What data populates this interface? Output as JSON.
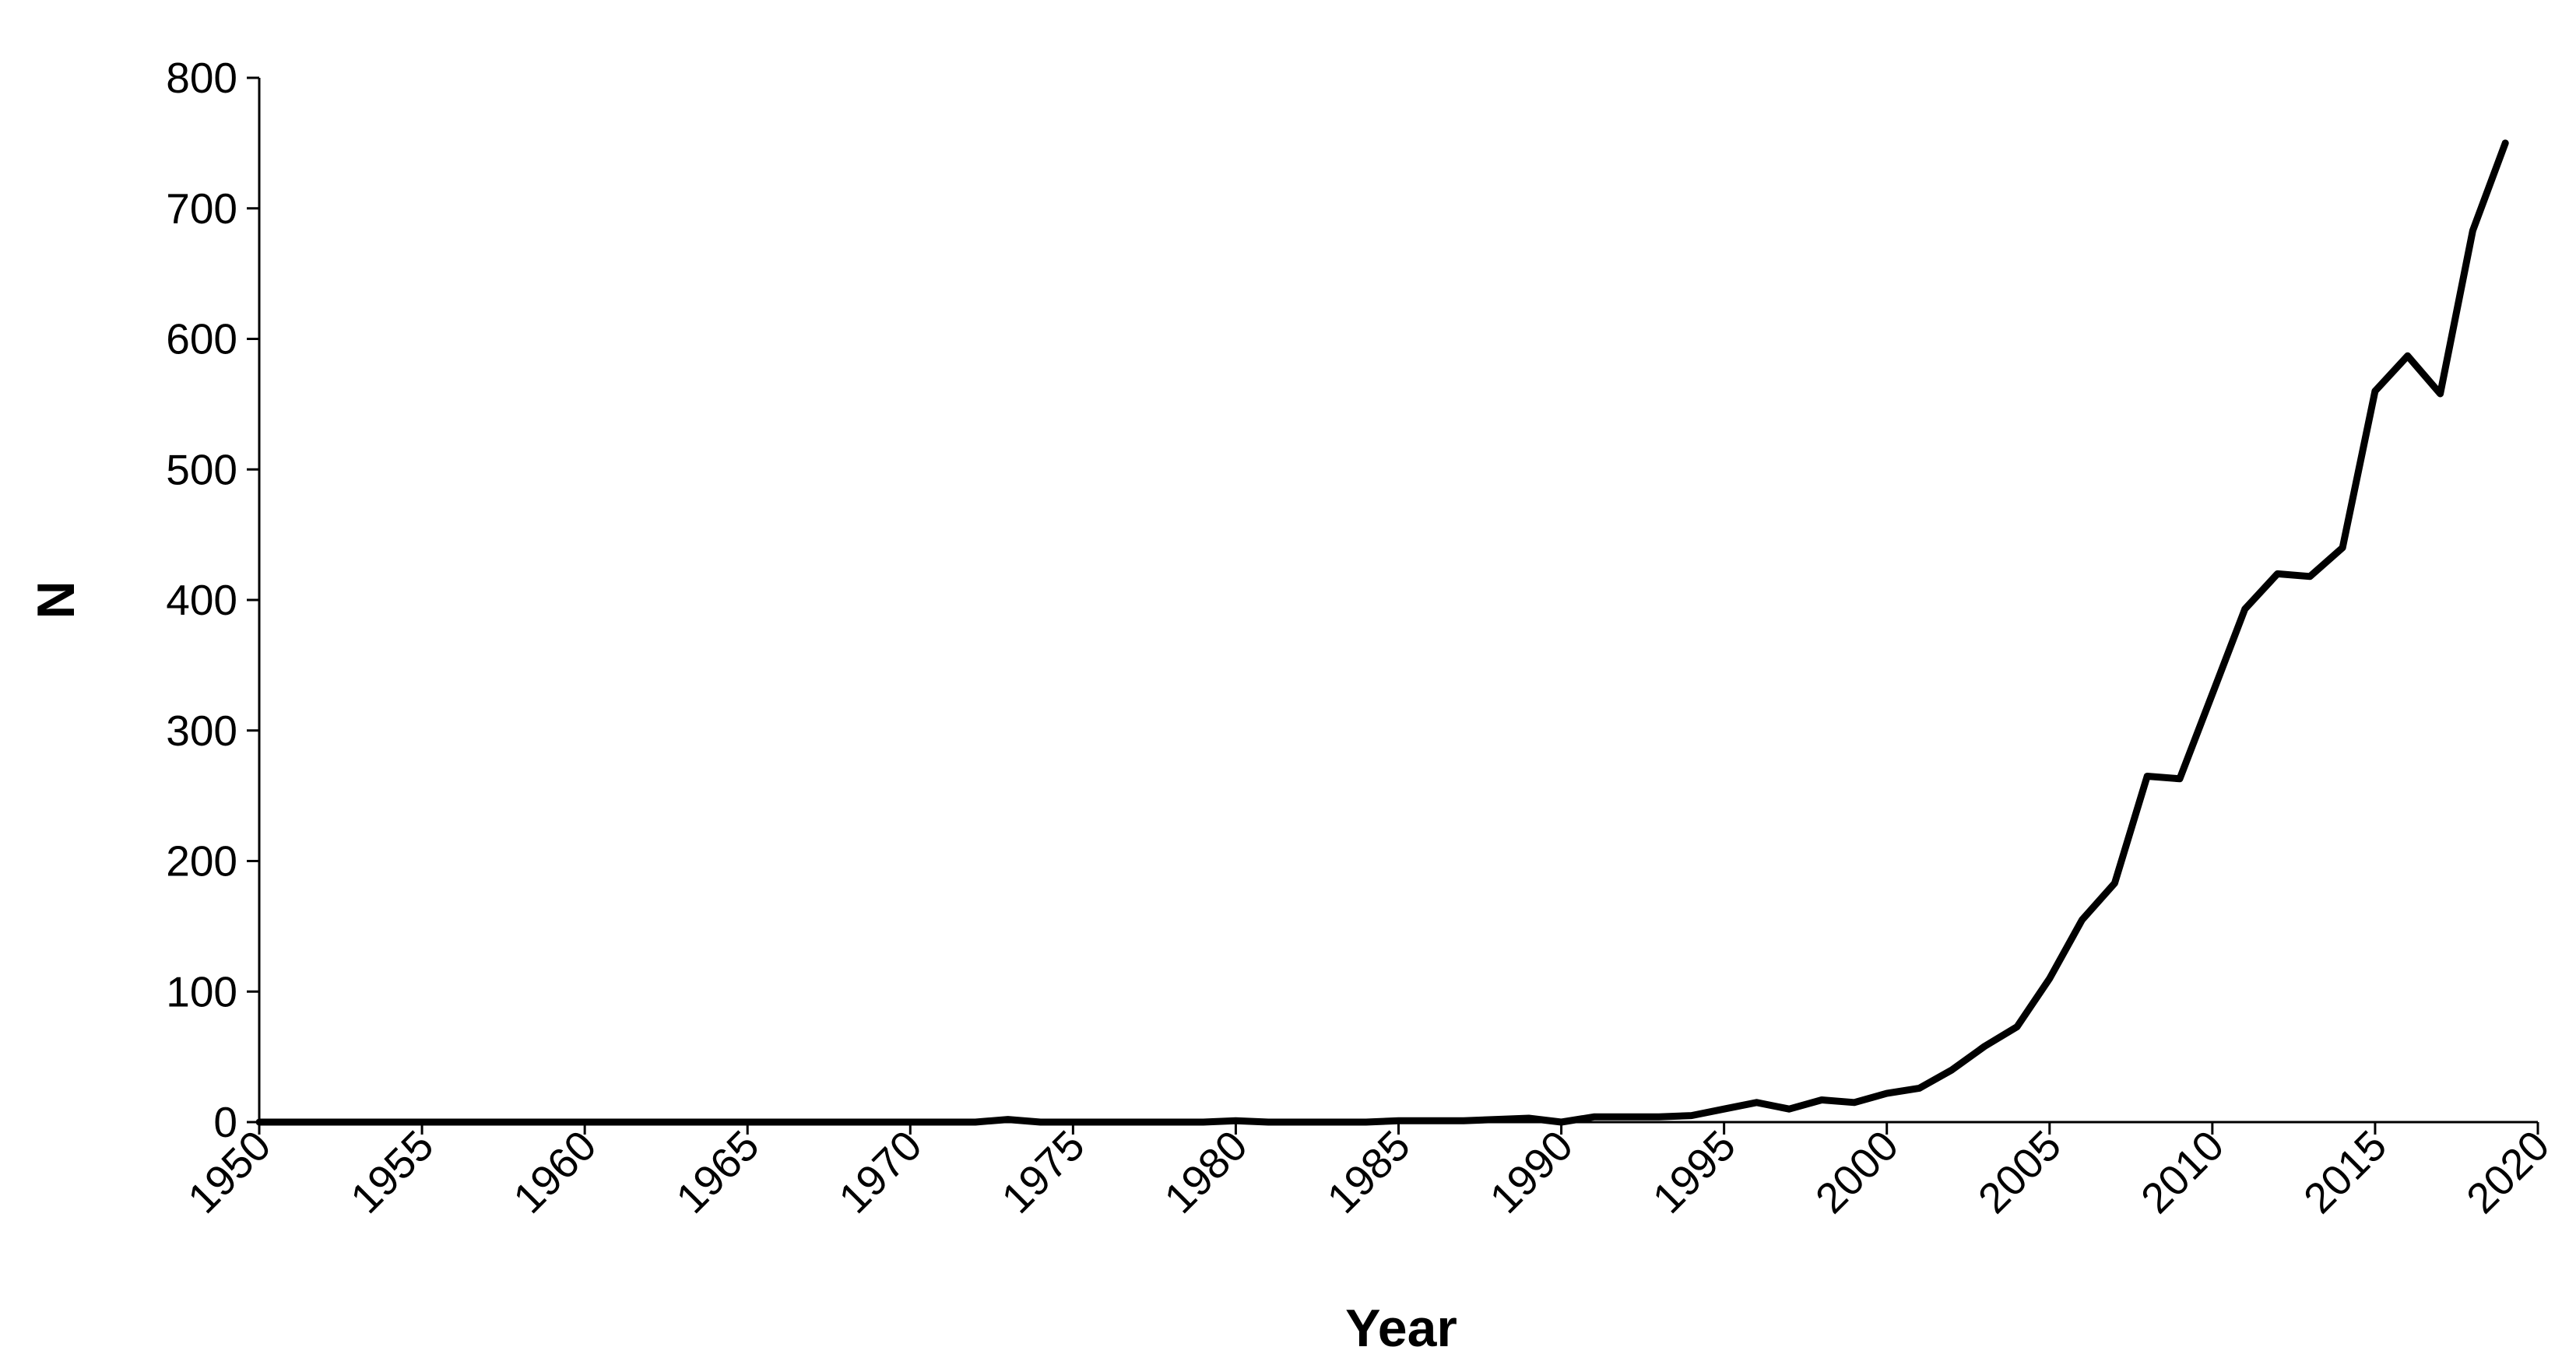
{
  "chart_data": {
    "type": "line",
    "title": "",
    "xlabel": "Year",
    "ylabel": "N",
    "xlim": [
      1950,
      2020
    ],
    "ylim": [
      0,
      800
    ],
    "grid": false,
    "x_ticks": [
      "1950",
      "1955",
      "1960",
      "1965",
      "1970",
      "1975",
      "1980",
      "1985",
      "1990",
      "1995",
      "2000",
      "2005",
      "2010",
      "2015",
      "2020"
    ],
    "y_ticks": [
      "0",
      "100",
      "200",
      "300",
      "400",
      "500",
      "600",
      "700",
      "800"
    ],
    "line_color": "#000000",
    "series": [
      {
        "x": [
          1950,
          1951,
          1952,
          1953,
          1954,
          1955,
          1956,
          1957,
          1958,
          1959,
          1960,
          1961,
          1962,
          1963,
          1964,
          1965,
          1966,
          1967,
          1968,
          1969,
          1970,
          1971,
          1972,
          1973,
          1974,
          1975,
          1976,
          1977,
          1978,
          1979,
          1980,
          1981,
          1982,
          1983,
          1984,
          1985,
          1986,
          1987,
          1988,
          1989,
          1990,
          1991,
          1992,
          1993,
          1994,
          1995,
          1996,
          1997,
          1998,
          1999,
          2000,
          2001,
          2002,
          2003,
          2004,
          2005,
          2006,
          2007,
          2008,
          2009,
          2010,
          2011,
          2012,
          2013,
          2014,
          2015,
          2016,
          2017,
          2018,
          2019
        ],
        "y": [
          0,
          0,
          0,
          0,
          0,
          0,
          0,
          0,
          0,
          0,
          0,
          0,
          0,
          0,
          0,
          0,
          0,
          0,
          0,
          0,
          0,
          0,
          0,
          2,
          0,
          0,
          0,
          0,
          0,
          0,
          1,
          0,
          0,
          0,
          0,
          1,
          1,
          1,
          2,
          3,
          0,
          4,
          4,
          4,
          5,
          10,
          15,
          10,
          17,
          15,
          22,
          26,
          40,
          58,
          73,
          110,
          155,
          183,
          265,
          263,
          328,
          393,
          420,
          418,
          440,
          560,
          587,
          558,
          683,
          750
        ]
      }
    ]
  }
}
